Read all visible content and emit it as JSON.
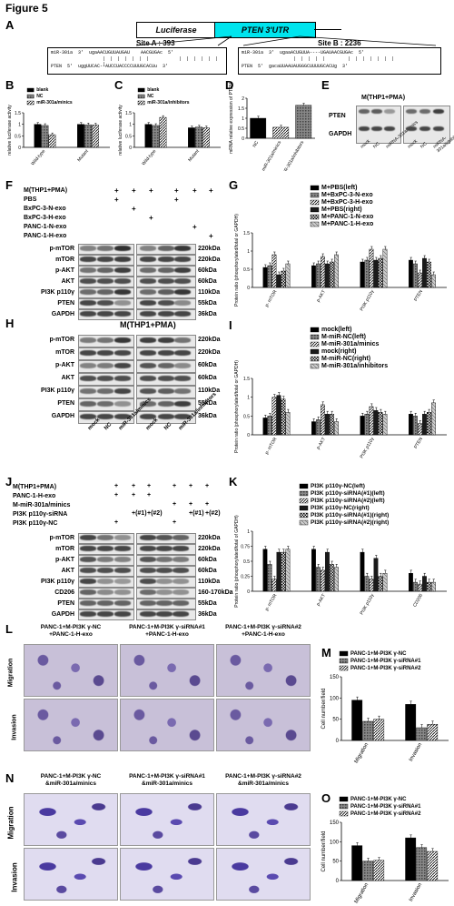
{
  "figure_title": "Figure 5",
  "panels": {
    "A": {
      "label": "A",
      "luciferase": "Luciferase",
      "utr": "PTEN 3'UTR",
      "site_a": "Site A : 393",
      "site_b": "Site B : 2236",
      "site_a_mir": "miR-301a  3'  ugaAACUGUUAUGAU    AACGUGAc  5'",
      "site_a_pten": "PTEN  5'  uggUUCAC--AUCCUACCCCUUUGCACUu  3'",
      "site_b_mir": "miR-301a  3'  ugaaACUGUUA----UGAUAACGUGAc  5'",
      "site_b_pten": "PTEN  5'  gacaUUAAUAUGGGCUUUUGCACUg  3'"
    },
    "B": {
      "label": "B",
      "ylabel": "relative luciferase activity",
      "legend": [
        "blank",
        "NC",
        "miR-301a/minics"
      ],
      "categories": [
        "Wild-type",
        "Mutant"
      ]
    },
    "C": {
      "label": "C",
      "ylabel": "relative luciferase activity",
      "legend": [
        "blank",
        "NC",
        "miR-301a/inhibitors"
      ],
      "categories": [
        "Wild-type",
        "Mutant"
      ]
    },
    "D": {
      "label": "D",
      "ylabel": "mRNA relative expression of PTEN",
      "categories": [
        "NC",
        "miR-301a/minics",
        "miR-301a/inhibitors"
      ]
    },
    "E": {
      "label": "E",
      "header": "M(THP1+PMA)",
      "rows": [
        "PTEN",
        "GAPDH"
      ],
      "lanes": [
        "mock",
        "NC",
        "miRNA-301a/minics",
        "mock",
        "NC",
        "miRNA-301a/inhibitors"
      ]
    },
    "F": {
      "label": "F",
      "conditions": [
        {
          "name": "M(THP1+PMA)",
          "marks": [
            "+",
            "+",
            "+",
            "+",
            "+",
            "+"
          ]
        },
        {
          "name": "PBS",
          "marks": [
            "+",
            "",
            "",
            "+",
            "",
            ""
          ]
        },
        {
          "name": "BxPC-3-N-exo",
          "marks": [
            "",
            "+",
            "",
            "",
            "",
            ""
          ]
        },
        {
          "name": "BxPC-3-H-exo",
          "marks": [
            "",
            "",
            "+",
            "",
            "",
            ""
          ]
        },
        {
          "name": "PANC-1-N-exo",
          "marks": [
            "",
            "",
            "",
            "",
            "+",
            ""
          ]
        },
        {
          "name": "PANC-1-H-exo",
          "marks": [
            "",
            "",
            "",
            "",
            "",
            "+"
          ]
        }
      ],
      "rows": [
        "p-mTOR",
        "mTOR",
        "p-AKT",
        "AKT",
        "PI3K p110γ",
        "PTEN",
        "GAPDH"
      ],
      "kda": [
        "220kDa",
        "220kDa",
        "60kDa",
        "60kDa",
        "110kDa",
        "55kDa",
        "36kDa"
      ]
    },
    "G": {
      "label": "G",
      "ylabel": "Protein ratio (phosphorylated/total or GAPDH)",
      "legend": [
        "M+PBS(left)",
        "M+BxPC-3-N-exo",
        "M+BxPC-3-H-exo",
        "M+PBS(right)",
        "M+PANC-1-N-exo",
        "M+PANC-1-H-exo"
      ],
      "categories": [
        "p- mTOR",
        "p-AKT",
        "PI3K p110γ",
        "PTEN"
      ]
    },
    "H": {
      "label": "H",
      "header": "M(THP1+PMA)",
      "rows": [
        "p-mTOR",
        "mTOR",
        "p-AKT",
        "AKT",
        "PI3K p110γ",
        "PTEN",
        "GAPDH"
      ],
      "kda": [
        "220kDa",
        "220kDa",
        "60kDa",
        "60kDa",
        "110kDa",
        "55kDa",
        "36kDa"
      ],
      "lanes": [
        "mock",
        "NC",
        "miR-301a/minics",
        "mock",
        "NC",
        "miR-301a/inhibitors"
      ]
    },
    "I": {
      "label": "I",
      "ylabel": "Protein ratio (phosphorylated/total or GAPDH)",
      "legend": [
        "mock(left)",
        "M-miR-NC(left)",
        "M-miR-301a/minics",
        "mock(right)",
        "M-miR-NC(right)",
        "M-miR-301a/inhibitors"
      ],
      "categories": [
        "p- mTOR",
        "p-AKT",
        "PI3K p110γ",
        "PTEN"
      ]
    },
    "J": {
      "label": "J",
      "conditions": [
        {
          "name": "M(THP1+PMA)",
          "marks": [
            "+",
            "+",
            "+",
            "+",
            "+",
            "+"
          ]
        },
        {
          "name": "PANC-1-H-exo",
          "marks": [
            "+",
            "+",
            "+",
            "",
            "",
            ""
          ]
        },
        {
          "name": "M-miR-301a/minics",
          "marks": [
            "",
            "",
            "",
            "+",
            "+",
            "+"
          ]
        },
        {
          "name": "PI3K p110γ-siRNA",
          "marks": [
            "",
            "+(#1)",
            "+(#2)",
            "",
            "+(#1)",
            "+(#2)"
          ]
        },
        {
          "name": "PI3K p110γ-NC",
          "marks": [
            "+",
            "",
            "",
            "+",
            "",
            ""
          ]
        }
      ],
      "rows": [
        "p-mTOR",
        "mTOR",
        "p-AKT",
        "AKT",
        "PI3K p110γ",
        "CD206",
        "PTEN",
        "GAPDH"
      ],
      "kda": [
        "220kDa",
        "220kDa",
        "60kDa",
        "60kDa",
        "110kDa",
        "160-170kDa",
        "55kDa",
        "36kDa"
      ]
    },
    "K": {
      "label": "K",
      "ylabel": "Protein ratio (phosphorylated/total of GAPDH)",
      "legend": [
        "PI3K p110γ-NC(left)",
        "PI3K p110γ-siRNA(#1)(left)",
        "PI3K p110γ-siRNA(#2)(left)",
        "PI3K p110γ-NC(right)",
        "PI3K p110γ-siRNA(#1)(right)",
        "PI3K p110γ-siRNA(#2)(right)"
      ],
      "categories": [
        "p- mTOR",
        "p-AKT",
        "PI3K p110γ",
        "CD206"
      ]
    },
    "L": {
      "label": "L",
      "columns": [
        "PANC-1+M-PI3K γ-NC\n+PANC-1-H-exo",
        "PANC-1+M-PI3K γ-siRNA#1\n+PANC-1-H-exo",
        "PANC-1+M-PI3K γ-siRNA#2\n+PANC-1-H-exo"
      ],
      "rows": [
        "Migration",
        "Invasion"
      ]
    },
    "M": {
      "label": "M",
      "ylabel": "Cell number/field",
      "legend": [
        "PANC-1+M-PI3K γ-NC",
        "PANC-1+M-PI3K γ-siRNA#1",
        "PANC-1+M-PI3K γ-siRNA#2"
      ],
      "categories": [
        "Migration",
        "Invasion"
      ]
    },
    "N": {
      "label": "N",
      "columns": [
        "PANC-1+M-PI3K γ-NC\n&miR-301a/minics",
        "PANC-1+M-PI3K γ-siRNA#1\n&miR-301a/minics",
        "PANC-1+M-PI3K γ-siRNA#2\n&miR-301a/minics"
      ],
      "rows": [
        "Migration",
        "Invasion"
      ]
    },
    "O": {
      "label": "O",
      "ylabel": "Cell number/field",
      "legend": [
        "PANC-1+M-PI3K γ-NC",
        "PANC-1+M-PI3K γ-siRNA#1",
        "PANC-1+M-PI3K γ-siRNA#2"
      ],
      "categories": [
        "Migration",
        "Invasion"
      ]
    }
  },
  "chart_data": [
    {
      "panel": "B",
      "type": "bar",
      "categories": [
        "Wild-type",
        "Mutant"
      ],
      "ylim": [
        0,
        1.5
      ],
      "series": [
        {
          "name": "blank",
          "values": [
            1.0,
            1.0
          ]
        },
        {
          "name": "NC",
          "values": [
            0.95,
            0.98
          ]
        },
        {
          "name": "miR-301a/minics",
          "values": [
            0.55,
            0.97
          ]
        }
      ]
    },
    {
      "panel": "C",
      "type": "bar",
      "categories": [
        "Wild-type",
        "Mutant"
      ],
      "ylim": [
        0,
        1.5
      ],
      "series": [
        {
          "name": "blank",
          "values": [
            1.0,
            0.85
          ]
        },
        {
          "name": "NC",
          "values": [
            0.95,
            0.88
          ]
        },
        {
          "name": "miR-301a/inhibitors",
          "values": [
            1.3,
            0.85
          ]
        }
      ]
    },
    {
      "panel": "D",
      "type": "bar",
      "categories": [
        "NC",
        "miR-301a/minics",
        "miR-301a/inhibitors"
      ],
      "ylim": [
        0,
        2.0
      ],
      "series": [
        {
          "name": "",
          "values": [
            1.0,
            0.55,
            1.65
          ]
        }
      ]
    },
    {
      "panel": "G",
      "type": "bar",
      "categories": [
        "p- mTOR",
        "p-AKT",
        "PI3K p110γ",
        "PTEN"
      ],
      "ylim": [
        0,
        1.5
      ],
      "series": [
        {
          "name": "M+PBS(left)",
          "values": [
            0.55,
            0.6,
            0.7,
            0.75
          ]
        },
        {
          "name": "M+BxPC-3-N-exo",
          "values": [
            0.6,
            0.65,
            0.75,
            0.65
          ]
        },
        {
          "name": "M+BxPC-3-H-exo",
          "values": [
            0.9,
            0.85,
            1.05,
            0.4
          ]
        },
        {
          "name": "M+PBS(right)",
          "values": [
            0.35,
            0.65,
            0.75,
            0.8
          ]
        },
        {
          "name": "M+PANC-1-N-exo",
          "values": [
            0.45,
            0.7,
            0.8,
            0.7
          ]
        },
        {
          "name": "M+PANC-1-H-exo",
          "values": [
            0.65,
            0.9,
            1.05,
            0.35
          ]
        }
      ]
    },
    {
      "panel": "I",
      "type": "bar",
      "categories": [
        "p- mTOR",
        "p-AKT",
        "PI3K p110γ",
        "PTEN"
      ],
      "ylim": [
        0,
        1.5
      ],
      "series": [
        {
          "name": "mock(left)",
          "values": [
            0.45,
            0.35,
            0.5,
            0.55
          ]
        },
        {
          "name": "M-miR-NC(left)",
          "values": [
            0.5,
            0.4,
            0.55,
            0.5
          ]
        },
        {
          "name": "M-miR-301a/minics",
          "values": [
            1.0,
            0.8,
            0.75,
            0.3
          ]
        },
        {
          "name": "mock(right)",
          "values": [
            1.05,
            0.55,
            0.65,
            0.55
          ]
        },
        {
          "name": "M-miR-NC(right)",
          "values": [
            0.95,
            0.55,
            0.6,
            0.6
          ]
        },
        {
          "name": "M-miR-301a/inhibitors",
          "values": [
            0.6,
            0.35,
            0.55,
            0.85
          ]
        }
      ]
    },
    {
      "panel": "K",
      "type": "bar",
      "categories": [
        "p- mTOR",
        "p-AKT",
        "PI3K p110γ",
        "CD206"
      ],
      "ylim": [
        0,
        1.0
      ],
      "series": [
        {
          "name": "PI3K p110γ-NC(left)",
          "values": [
            0.7,
            0.7,
            0.65,
            0.3
          ]
        },
        {
          "name": "PI3K p110γ-siRNA(#1)(left)",
          "values": [
            0.45,
            0.4,
            0.25,
            0.15
          ]
        },
        {
          "name": "PI3K p110γ-siRNA(#2)(left)",
          "values": [
            0.2,
            0.35,
            0.2,
            0.12
          ]
        },
        {
          "name": "PI3K p110γ-NC(right)",
          "values": [
            0.65,
            0.65,
            0.55,
            0.25
          ]
        },
        {
          "name": "PI3K p110γ-siRNA(#1)(right)",
          "values": [
            0.65,
            0.45,
            0.25,
            0.15
          ]
        },
        {
          "name": "PI3K p110γ-siRNA(#2)(right)",
          "values": [
            0.7,
            0.4,
            0.3,
            0.15
          ]
        }
      ]
    },
    {
      "panel": "M",
      "type": "bar",
      "categories": [
        "Migration",
        "Invasion"
      ],
      "ylim": [
        0,
        150
      ],
      "series": [
        {
          "name": "PANC-1+M-PI3K γ-NC",
          "values": [
            95,
            85
          ]
        },
        {
          "name": "PANC-1+M-PI3K γ-siRNA#1",
          "values": [
            45,
            30
          ]
        },
        {
          "name": "PANC-1+M-PI3K γ-siRNA#2",
          "values": [
            50,
            38
          ]
        }
      ]
    },
    {
      "panel": "O",
      "type": "bar",
      "categories": [
        "Migration",
        "Invasion"
      ],
      "ylim": [
        0,
        150
      ],
      "series": [
        {
          "name": "PANC-1+M-PI3K γ-NC",
          "values": [
            90,
            110
          ]
        },
        {
          "name": "PANC-1+M-PI3K γ-siRNA#1",
          "values": [
            50,
            85
          ]
        },
        {
          "name": "PANC-1+M-PI3K γ-siRNA#2",
          "values": [
            52,
            75
          ]
        }
      ]
    }
  ]
}
